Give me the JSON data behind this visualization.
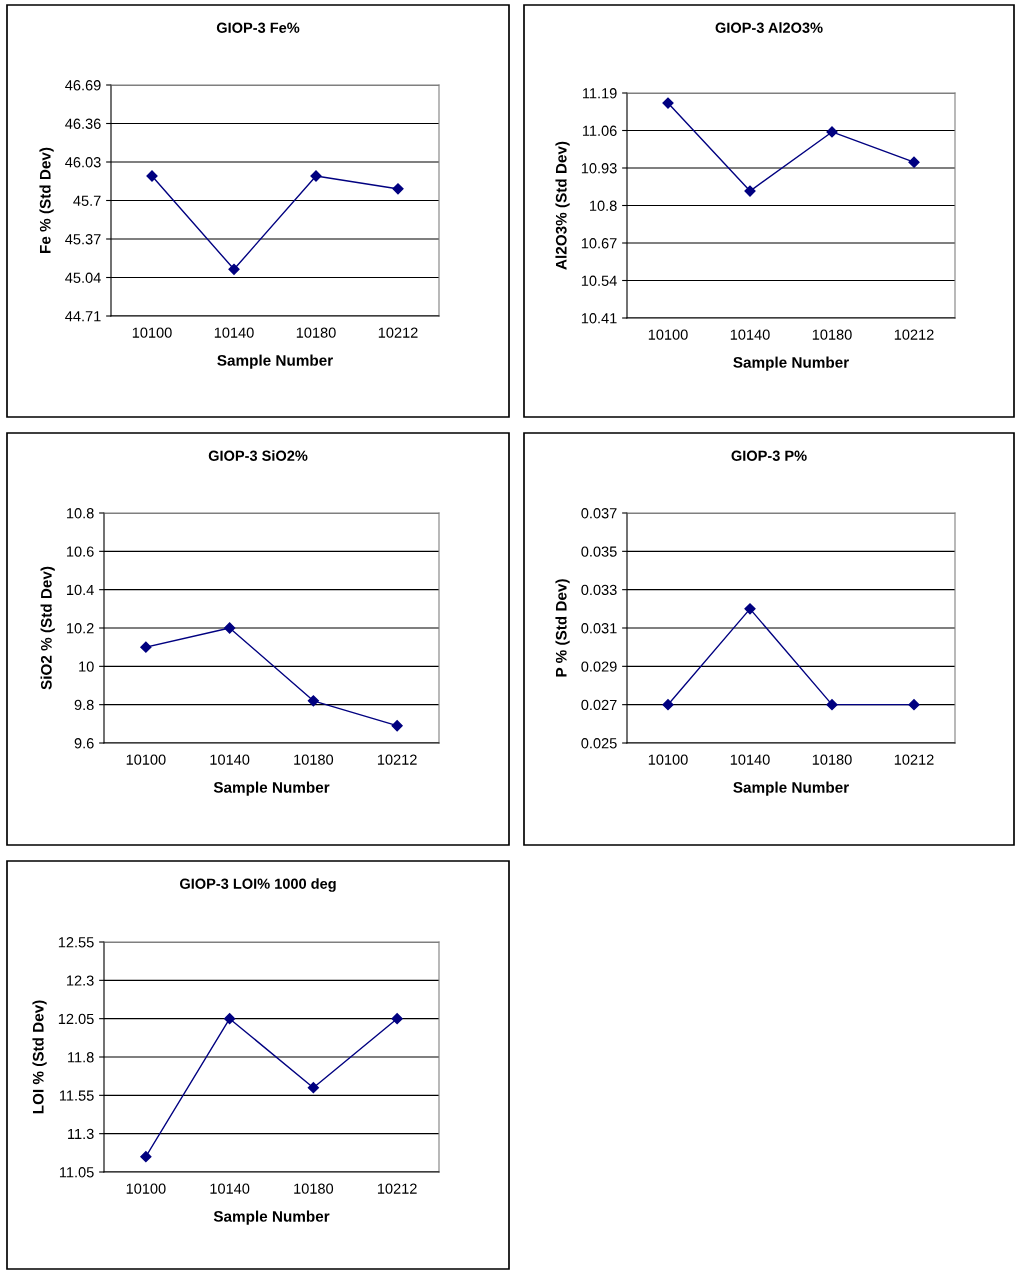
{
  "chart_data": [
    {
      "type": "line",
      "title": "GIOP-3 Fe%",
      "xlabel": "Sample Number",
      "ylabel": "Fe % (Std Dev)",
      "categories": [
        "10100",
        "10140",
        "10180",
        "10212"
      ],
      "series": [
        {
          "color": "#000080",
          "values": [
            45.91,
            45.11,
            45.91,
            45.8
          ]
        }
      ],
      "ylim": [
        44.71,
        46.69
      ],
      "yticks": [
        44.71,
        45.04,
        45.37,
        45.7,
        46.03,
        46.36,
        46.69
      ],
      "grid": "y",
      "marker": "diamond",
      "line_style": "solid"
    },
    {
      "type": "line",
      "title": "GIOP-3 Al2O3%",
      "xlabel": "Sample Number",
      "ylabel": "Al2O3% (Std Dev)",
      "categories": [
        "10100",
        "10140",
        "10180",
        "10212"
      ],
      "series": [
        {
          "color": "#000080",
          "values": [
            11.155,
            10.85,
            11.055,
            10.95
          ]
        }
      ],
      "ylim": [
        10.41,
        11.19
      ],
      "yticks": [
        10.41,
        10.54,
        10.67,
        10.8,
        10.93,
        11.06,
        11.19
      ],
      "grid": "y",
      "marker": "diamond",
      "line_style": "solid"
    },
    {
      "type": "line",
      "title": "GIOP-3 SiO2%",
      "xlabel": "Sample Number",
      "ylabel": "SiO2 % (Std Dev)",
      "categories": [
        "10100",
        "10140",
        "10180",
        "10212"
      ],
      "series": [
        {
          "color": "#000080",
          "values": [
            10.1,
            10.2,
            9.82,
            9.69
          ]
        }
      ],
      "ylim": [
        9.6,
        10.8
      ],
      "yticks": [
        9.6,
        9.8,
        10,
        10.2,
        10.4,
        10.6,
        10.8
      ],
      "grid": "y",
      "marker": "diamond",
      "line_style": "solid"
    },
    {
      "type": "line",
      "title": "GIOP-3 P%",
      "xlabel": "Sample Number",
      "ylabel": "P % (Std Dev)",
      "categories": [
        "10100",
        "10140",
        "10180",
        "10212"
      ],
      "series": [
        {
          "color": "#000080",
          "values": [
            0.027,
            0.032,
            0.027,
            0.027
          ]
        }
      ],
      "ylim": [
        0.025,
        0.037
      ],
      "yticks": [
        0.025,
        0.027,
        0.029,
        0.031,
        0.033,
        0.035,
        0.037
      ],
      "grid": "y",
      "marker": "diamond",
      "line_style": "solid"
    },
    {
      "type": "line",
      "title": "GIOP-3 LOI% 1000 deg",
      "xlabel": "Sample Number",
      "ylabel": "LOI % (Std Dev)",
      "categories": [
        "10100",
        "10140",
        "10180",
        "10212"
      ],
      "series": [
        {
          "color": "#000080",
          "values": [
            11.15,
            12.05,
            11.6,
            12.05
          ]
        }
      ],
      "ylim": [
        11.05,
        12.55
      ],
      "yticks": [
        11.05,
        11.3,
        11.55,
        11.8,
        12.05,
        12.3,
        12.55
      ],
      "grid": "y",
      "marker": "diamond",
      "line_style": "solid"
    }
  ]
}
